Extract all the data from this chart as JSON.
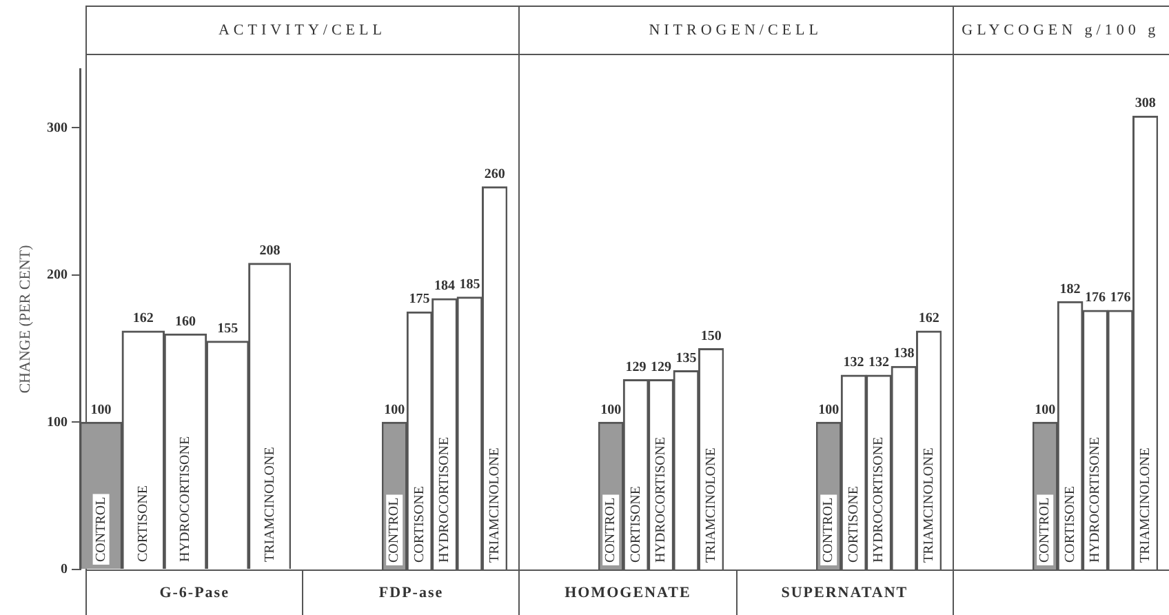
{
  "chart_data": [
    {
      "type": "bar",
      "title": "ACTIVITY/CELL",
      "xlabel": "G-6-Pase",
      "ylabel": "CHANGE (PER CENT)",
      "categories": [
        "CONTROL",
        "CORTISONE",
        "HYDROCORTISONE",
        null,
        "TRIAMCINOLONE"
      ],
      "values": [
        100,
        162,
        160,
        155,
        208
      ],
      "colors": [
        "#9a9a9a",
        "#ffffff",
        "#ffffff",
        "#ffffff",
        "#ffffff"
      ],
      "ylim": [
        0,
        340
      ],
      "yticks": [
        0,
        100,
        200,
        300
      ],
      "tick_labels": "y",
      "data_labels": true
    },
    {
      "type": "bar",
      "xlabel": "FDP-ase",
      "categories": [
        "CONTROL",
        "CORTISONE",
        "HYDROCORTISONE",
        null,
        "TRIAMCINOLONE"
      ],
      "values": [
        100,
        175,
        184,
        185,
        260
      ],
      "colors": [
        "#9a9a9a",
        "#ffffff",
        "#ffffff",
        "#ffffff",
        "#ffffff"
      ],
      "tick_labels": false,
      "data_labels": true
    },
    {
      "type": "bar",
      "title": "NITROGEN/CELL",
      "xlabel": "HOMOGENATE",
      "categories": [
        "CONTROL",
        "CORTISONE",
        "HYDROCORTISONE",
        null,
        "TRIAMCINOLONE"
      ],
      "values": [
        100,
        129,
        129,
        135,
        150
      ],
      "colors": [
        "#9a9a9a",
        "#ffffff",
        "#ffffff",
        "#ffffff",
        "#ffffff"
      ],
      "tick_labels": false,
      "data_labels": true
    },
    {
      "type": "bar",
      "xlabel": "SUPERNATANT",
      "categories": [
        "CONTROL",
        "CORTISONE",
        "HYDROCORTISONE",
        null,
        "TRIAMCINOLONE"
      ],
      "values": [
        100,
        132,
        132,
        138,
        162
      ],
      "colors": [
        "#9a9a9a",
        "#ffffff",
        "#ffffff",
        "#ffffff",
        "#ffffff"
      ],
      "tick_labels": false,
      "data_labels": true
    },
    {
      "type": "bar",
      "title": "GLYCOGEN g/100 g",
      "categories": [
        "CONTROL",
        "CORTISONE",
        "HYDROCORTISONE",
        null,
        "TRIAMCINOLONE"
      ],
      "values": [
        100,
        182,
        176,
        176,
        308
      ],
      "colors": [
        "#9a9a9a",
        "#ffffff",
        "#ffffff",
        "#ffffff",
        "#ffffff"
      ],
      "tick_labels": false,
      "data_labels": true
    }
  ]
}
